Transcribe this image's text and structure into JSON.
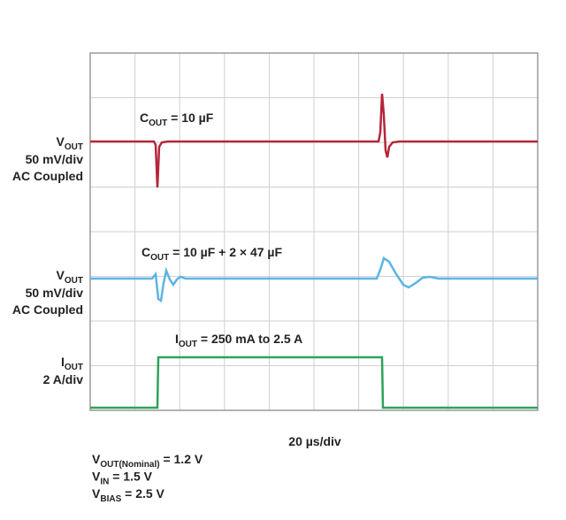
{
  "traces": [
    {
      "label": {
        "main": "C",
        "sub": "OUT",
        "rest": " = 10 µF"
      },
      "scale": {
        "name": {
          "main": "V",
          "sub": "OUT"
        },
        "lines": [
          "50 mV/div",
          "AC Coupled"
        ]
      }
    },
    {
      "label": {
        "main": "C",
        "sub": "OUT",
        "rest": " = 10 µF + 2 × 47 µF"
      },
      "scale": {
        "name": {
          "main": "V",
          "sub": "OUT"
        },
        "lines": [
          "50 mV/div",
          "AC Coupled"
        ]
      }
    },
    {
      "label": {
        "main": "I",
        "sub": "OUT",
        "rest": " = 250 mA to 2.5 A"
      },
      "scale": {
        "name": {
          "main": "I",
          "sub": "OUT"
        },
        "lines": [
          "2 A/div"
        ]
      }
    }
  ],
  "x_scale": "20 µs/div",
  "conditions": [
    {
      "main": "V",
      "sub": "OUT(Nominal)",
      "rest": " = 1.2 V"
    },
    {
      "main": "V",
      "sub": "IN",
      "rest": " = 1.5 V"
    },
    {
      "main": "V",
      "sub": "BIAS",
      "rest": " = 2.5 V"
    }
  ]
}
